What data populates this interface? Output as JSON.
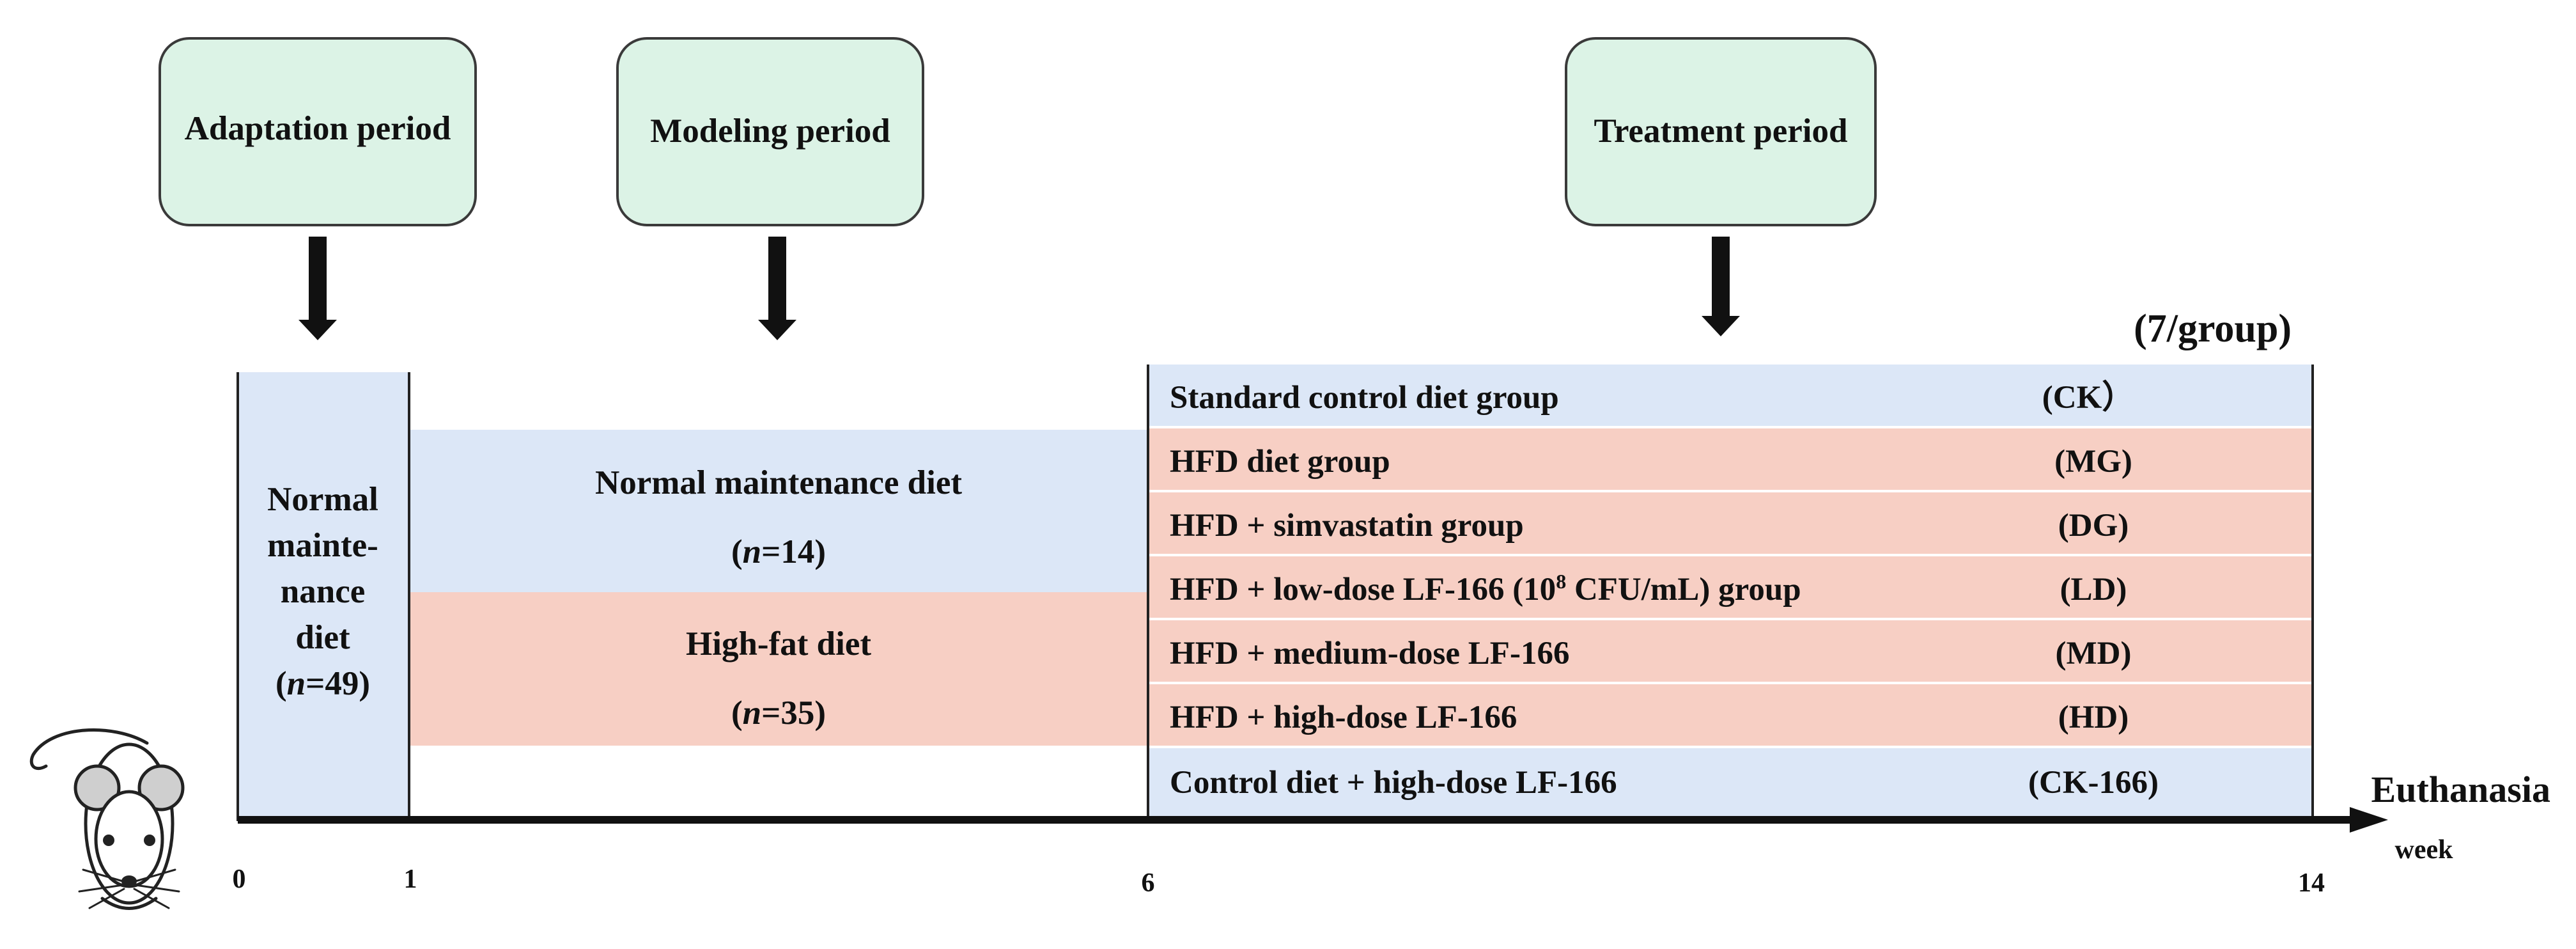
{
  "colors": {
    "period_box_fill": "#dcf3e6",
    "period_box_stroke": "#3a3a3a",
    "normal_diet_fill": "#dce7f7",
    "high_fat_fill": "#f7cfc4",
    "arrow": "#111111"
  },
  "periods": {
    "adaptation": "Adaptation period",
    "modeling": "Modeling period",
    "treatment": "Treatment period"
  },
  "adaptation_block": {
    "lines": [
      "Normal",
      "mainte-",
      "nance",
      "diet"
    ],
    "n_prefix": "(",
    "n_symbol": "n",
    "n_value": "=49)"
  },
  "modeling_blocks": {
    "normal": {
      "label": "Normal maintenance diet",
      "n_prefix": "(",
      "n_symbol": "n",
      "n_value": "=14)"
    },
    "high_fat": {
      "label": "High-fat diet",
      "n_prefix": "(",
      "n_symbol": "n",
      "n_value": "=35)"
    }
  },
  "treatment": {
    "group_size": "(7/group)",
    "groups": [
      {
        "label": "Standard control diet group",
        "code": "(CK）",
        "diet": "normal"
      },
      {
        "label": "HFD diet group",
        "code": "(MG)",
        "diet": "high_fat"
      },
      {
        "label": "HFD + simvastatin group",
        "code": "(DG)",
        "diet": "high_fat"
      },
      {
        "label_before_exp": "HFD + low-dose LF-166 (10",
        "exponent": "8",
        "label_after_exp": " CFU/mL) group",
        "code": "(LD)",
        "diet": "high_fat"
      },
      {
        "label": "HFD + medium-dose LF-166",
        "code": "(MD)",
        "diet": "high_fat"
      },
      {
        "label": "HFD + high-dose LF-166",
        "code": "(HD)",
        "diet": "high_fat"
      },
      {
        "label": "Control diet + high-dose LF-166",
        "code": "(CK-166)",
        "diet": "normal"
      }
    ]
  },
  "timeline": {
    "ticks": [
      "0",
      "1",
      "6",
      "14"
    ],
    "unit": "week",
    "end_label": "Euthanasia"
  }
}
